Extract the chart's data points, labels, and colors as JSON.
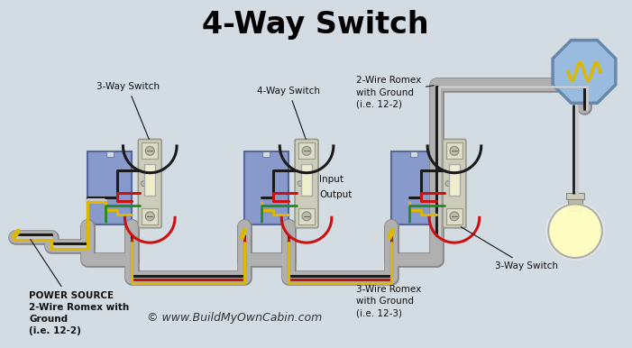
{
  "title": "4-Way Switch",
  "bg": "#d3dbe3",
  "border_color": "#aaaaaa",
  "title_fontsize": 24,
  "copyright_text": "© www.BuildMyOwnCabin.com",
  "power_source_label": "POWER SOURCE\n2-Wire Romex with\nGround\n(i.e. 12-2)",
  "romex_top_label": "2-Wire Romex\nwith Ground\n(i.e. 12-2)",
  "romex_bottom_label": "3-Wire Romex\nwith Ground\n(i.e. 12-3)",
  "sw1_label": "3-Way Switch",
  "sw2_label": "4-Way Switch",
  "sw3_label": "3-Way Switch",
  "input_label": "Input",
  "output_label": "Output",
  "wire_black": "#1a1a1a",
  "wire_red": "#cc1111",
  "wire_white": "#c8c8c8",
  "wire_yellow": "#ddb800",
  "wire_green": "#228B22",
  "conduit_color": "#b0b0b0",
  "conduit_edge": "#888888",
  "box_fill": "#8899cc",
  "box_edge": "#556699",
  "sw_body_fill": "#ccccbb",
  "sw_body_edge": "#999988",
  "sw_paddle_fill": "#eeeecc",
  "screw_fill": "#bbbbaa",
  "oct_fill": "#99bbdd",
  "oct_edge": "#6688aa",
  "bulb_globe_fill": "#ffffc0",
  "bulb_base_fill": "#ddddcc",
  "bulb_edge": "#aaaaaa"
}
